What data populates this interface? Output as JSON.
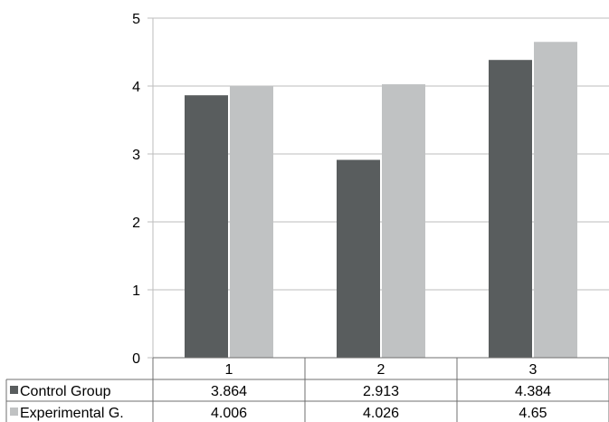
{
  "chart_data": {
    "type": "bar",
    "categories": [
      "1",
      "2",
      "3"
    ],
    "series": [
      {
        "name": "Control Group",
        "table_label": "Control Group",
        "color": "#595d5e",
        "values": [
          3.864,
          2.913,
          4.384
        ],
        "value_labels": [
          "3.864",
          "2.913",
          "4.384"
        ]
      },
      {
        "name": "Experimental G.",
        "table_label": "Experimental G.",
        "color": "#c0c2c3",
        "values": [
          4.006,
          4.026,
          4.65
        ],
        "value_labels": [
          "4.006",
          "4.026",
          "4.65"
        ]
      }
    ],
    "ylim": [
      0,
      5
    ],
    "yticks": [
      "0",
      "1",
      "2",
      "3",
      "4",
      "5"
    ],
    "grid": true,
    "legend": "data-table-below"
  }
}
